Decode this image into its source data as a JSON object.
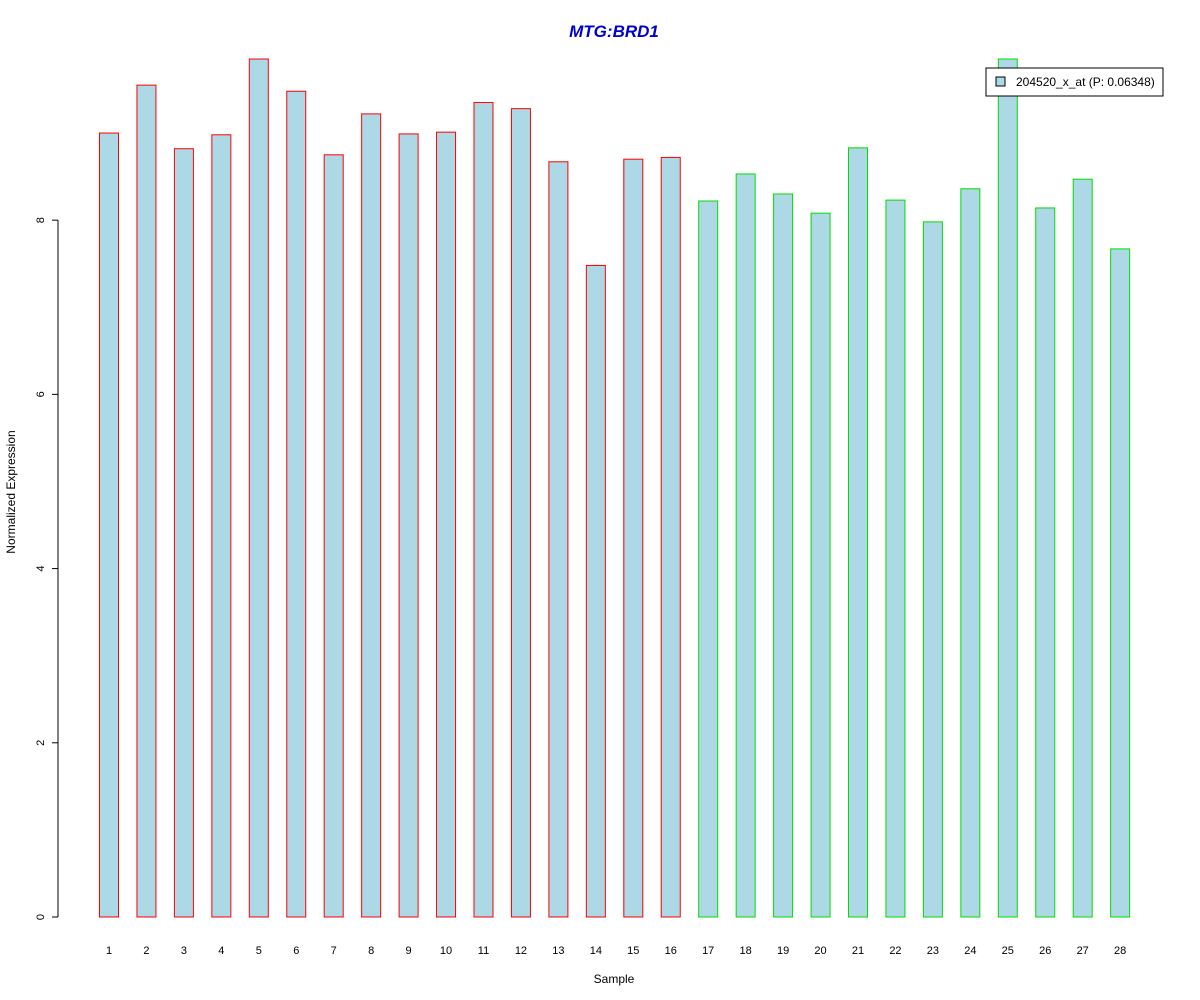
{
  "chart_data": {
    "type": "bar",
    "title": "MTG:BRD1",
    "xlabel": "Sample",
    "ylabel": "Normalized Expression",
    "categories": [
      "1",
      "2",
      "3",
      "4",
      "5",
      "6",
      "7",
      "8",
      "9",
      "10",
      "11",
      "12",
      "13",
      "14",
      "15",
      "16",
      "17",
      "18",
      "19",
      "20",
      "21",
      "22",
      "23",
      "24",
      "25",
      "26",
      "27",
      "28"
    ],
    "series": [
      {
        "name": "204520_x_at (P: 0.06348)",
        "values": [
          9.0,
          9.55,
          8.82,
          8.98,
          9.85,
          9.48,
          8.75,
          9.22,
          8.99,
          9.01,
          9.35,
          9.28,
          8.67,
          7.48,
          8.7,
          8.72,
          8.22,
          8.53,
          8.3,
          8.08,
          8.83,
          8.23,
          7.98,
          8.36,
          9.85,
          8.14,
          8.47,
          7.67
        ]
      }
    ],
    "group_of_sample": [
      1,
      1,
      1,
      1,
      1,
      1,
      1,
      1,
      1,
      1,
      1,
      1,
      1,
      1,
      1,
      1,
      2,
      2,
      2,
      2,
      2,
      2,
      2,
      2,
      2,
      2,
      2,
      2
    ],
    "group_border_colors": [
      "#ff0000",
      "#00dd00"
    ],
    "bar_fill_color": "#add8e6",
    "title_color": "#0000cc",
    "y_ticks": [
      0,
      2,
      4,
      6,
      8
    ],
    "ylim": [
      0,
      9.85
    ],
    "grid": false,
    "legend_position": "top-right"
  }
}
